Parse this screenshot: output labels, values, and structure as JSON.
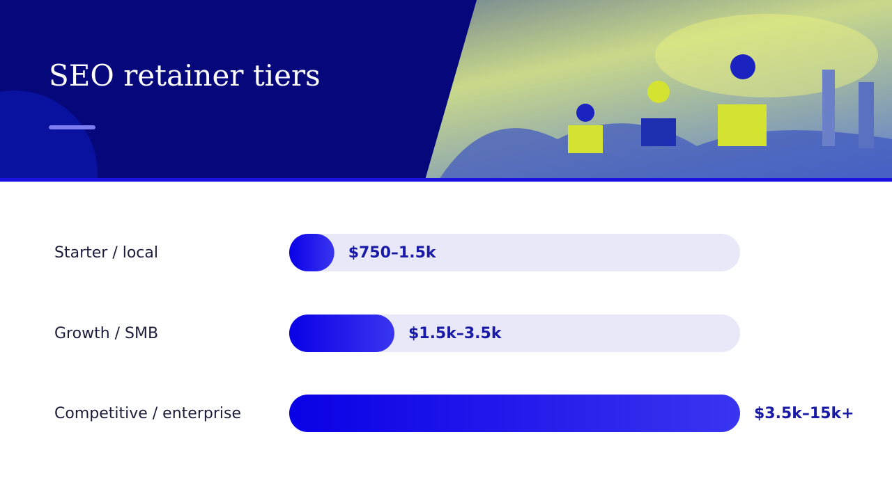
{
  "chart_data": {
    "type": "bar",
    "orientation": "horizontal",
    "title": "SEO retainer tiers",
    "categories": [
      "Starter / local",
      "Growth / SMB",
      "Competitive / enterprise"
    ],
    "values": [
      1500,
      3500,
      15000
    ],
    "value_labels": [
      "$750–1.5k",
      "$1.5k–3.5k",
      "$3.5k–15k+"
    ],
    "color": "#0a00e6",
    "xlim": [
      0,
      15000
    ]
  }
}
